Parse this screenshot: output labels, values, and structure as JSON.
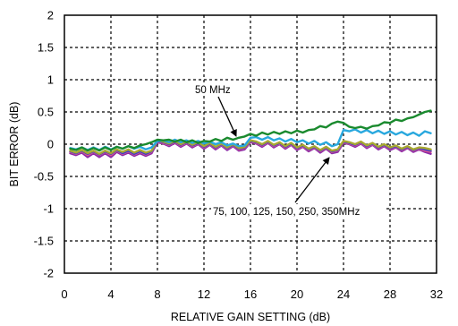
{
  "chart_data": {
    "type": "line",
    "title": "",
    "xlabel": "RELATIVE GAIN SETTING (dB)",
    "ylabel": "BIT ERROR (dB)",
    "xlim": [
      0,
      32
    ],
    "ylim": [
      -2,
      2
    ],
    "xticks": [
      0,
      4,
      8,
      12,
      16,
      20,
      24,
      28,
      32
    ],
    "yticks": [
      2,
      1.5,
      1,
      0.5,
      0,
      -0.5,
      -1,
      -1.5,
      -2
    ],
    "xtick_labels": [
      "0",
      "4",
      "8",
      "12",
      "16",
      "20",
      "24",
      "28",
      "32"
    ],
    "ytick_labels": [
      "2",
      "1.5",
      "1",
      "0.5",
      "0",
      "-0.5",
      "-1",
      "-1.5",
      "-2"
    ],
    "grid": true,
    "legend": "none",
    "annotations": [
      {
        "text": "50 MHz",
        "arrow_to": [
          14.8,
          0.1
        ]
      },
      {
        "text": "75, 100, 125, 150, 250, 350MHz",
        "arrow_to": [
          22.5,
          -0.18
        ]
      }
    ],
    "x": [
      0.5,
      1,
      1.5,
      2,
      2.5,
      3,
      3.5,
      4,
      4.5,
      5,
      5.5,
      6,
      6.5,
      7,
      7.5,
      8,
      8.5,
      9,
      9.5,
      10,
      10.5,
      11,
      11.5,
      12,
      12.5,
      13,
      13.5,
      14,
      14.5,
      15,
      15.5,
      16,
      16.5,
      17,
      17.5,
      18,
      18.5,
      19,
      19.5,
      20,
      20.5,
      21,
      21.5,
      22,
      22.5,
      23,
      23.5,
      24,
      24.5,
      25,
      25.5,
      26,
      26.5,
      27,
      27.5,
      28,
      28.5,
      29,
      29.5,
      30,
      30.5,
      31,
      31.5
    ],
    "series": [
      {
        "color": "#1a8a2e",
        "values": [
          -0.07,
          -0.09,
          -0.05,
          -0.1,
          -0.06,
          -0.1,
          -0.05,
          -0.09,
          -0.04,
          -0.07,
          -0.03,
          -0.06,
          -0.02,
          0.0,
          0.03,
          0.07,
          0.06,
          0.07,
          0.04,
          0.07,
          0.03,
          0.06,
          0.02,
          0.05,
          0.04,
          0.08,
          0.05,
          0.1,
          0.07,
          0.1,
          0.12,
          0.16,
          0.13,
          0.18,
          0.15,
          0.19,
          0.16,
          0.2,
          0.17,
          0.21,
          0.18,
          0.22,
          0.23,
          0.28,
          0.26,
          0.32,
          0.35,
          0.33,
          0.27,
          0.25,
          0.27,
          0.24,
          0.28,
          0.29,
          0.34,
          0.33,
          0.38,
          0.36,
          0.4,
          0.42,
          0.46,
          0.5,
          0.52
        ]
      },
      {
        "color": "#29a8de",
        "values": [
          -0.06,
          -0.08,
          -0.05,
          -0.09,
          -0.05,
          -0.09,
          -0.04,
          -0.08,
          -0.04,
          -0.07,
          -0.03,
          -0.07,
          -0.04,
          -0.08,
          -0.05,
          0.05,
          0.06,
          0.03,
          0.07,
          0.03,
          0.06,
          0.02,
          0.05,
          0.01,
          0.04,
          0.0,
          0.03,
          -0.02,
          0.01,
          -0.03,
          -0.02,
          0.1,
          0.11,
          0.07,
          0.11,
          0.06,
          0.09,
          0.04,
          0.08,
          0.03,
          0.06,
          0.01,
          0.05,
          -0.01,
          0.03,
          -0.03,
          0.0,
          0.22,
          0.2,
          0.23,
          0.18,
          0.22,
          0.17,
          0.21,
          0.16,
          0.2,
          0.15,
          0.19,
          0.14,
          0.18,
          0.13,
          0.2,
          0.17
        ]
      },
      {
        "color": "#a8a830",
        "values": [
          -0.1,
          -0.13,
          -0.09,
          -0.14,
          -0.1,
          -0.15,
          -0.1,
          -0.14,
          -0.08,
          -0.12,
          -0.08,
          -0.13,
          -0.09,
          -0.13,
          -0.1,
          0.06,
          0.04,
          0.01,
          0.05,
          0.0,
          0.04,
          -0.01,
          0.03,
          -0.03,
          0.02,
          -0.04,
          0.01,
          -0.05,
          0.0,
          -0.06,
          -0.04,
          0.06,
          0.04,
          0.0,
          0.05,
          -0.01,
          0.03,
          -0.03,
          0.02,
          -0.05,
          -0.01,
          -0.07,
          -0.03,
          -0.09,
          -0.04,
          -0.1,
          -0.08,
          0.05,
          0.03,
          0.0,
          0.04,
          -0.02,
          0.02,
          -0.04,
          0.0,
          -0.05,
          -0.02,
          -0.07,
          -0.03,
          -0.08,
          -0.05,
          -0.06,
          -0.08
        ]
      },
      {
        "color": "#3a3ad0",
        "values": [
          -0.11,
          -0.14,
          -0.1,
          -0.15,
          -0.11,
          -0.16,
          -0.11,
          -0.15,
          -0.09,
          -0.14,
          -0.1,
          -0.15,
          -0.11,
          -0.15,
          -0.11,
          0.05,
          0.03,
          0.0,
          0.04,
          -0.01,
          0.03,
          -0.02,
          0.02,
          -0.04,
          0.01,
          -0.05,
          0.0,
          -0.06,
          -0.01,
          -0.07,
          -0.05,
          0.05,
          0.03,
          -0.01,
          0.04,
          -0.02,
          0.02,
          -0.04,
          0.01,
          -0.06,
          -0.02,
          -0.08,
          -0.04,
          -0.1,
          -0.05,
          -0.11,
          -0.09,
          0.04,
          0.02,
          -0.01,
          0.03,
          -0.03,
          0.01,
          -0.05,
          -0.01,
          -0.06,
          -0.03,
          -0.08,
          -0.04,
          -0.09,
          -0.06,
          -0.08,
          -0.1
        ]
      },
      {
        "color": "#e05a8a",
        "values": [
          -0.12,
          -0.15,
          -0.11,
          -0.17,
          -0.12,
          -0.17,
          -0.12,
          -0.17,
          -0.1,
          -0.15,
          -0.11,
          -0.16,
          -0.12,
          -0.16,
          -0.12,
          0.04,
          0.02,
          -0.01,
          0.03,
          -0.02,
          0.02,
          -0.03,
          0.01,
          -0.05,
          0.0,
          -0.06,
          -0.01,
          -0.07,
          -0.02,
          -0.08,
          -0.06,
          0.04,
          0.02,
          -0.02,
          0.03,
          -0.03,
          0.01,
          -0.05,
          0.0,
          -0.07,
          -0.03,
          -0.09,
          -0.05,
          -0.11,
          -0.06,
          -0.12,
          -0.1,
          0.03,
          0.01,
          -0.02,
          0.02,
          -0.04,
          0.0,
          -0.06,
          -0.02,
          -0.07,
          -0.04,
          -0.09,
          -0.05,
          -0.1,
          -0.07,
          -0.1,
          -0.12
        ]
      },
      {
        "color": "#8a2aa8",
        "values": [
          -0.14,
          -0.17,
          -0.13,
          -0.2,
          -0.14,
          -0.2,
          -0.14,
          -0.2,
          -0.12,
          -0.17,
          -0.13,
          -0.18,
          -0.14,
          -0.18,
          -0.14,
          0.03,
          0.01,
          -0.03,
          0.02,
          -0.04,
          0.01,
          -0.05,
          0.0,
          -0.07,
          -0.01,
          -0.08,
          -0.02,
          -0.09,
          -0.03,
          -0.1,
          -0.08,
          0.03,
          0.01,
          -0.04,
          0.02,
          -0.05,
          0.0,
          -0.07,
          -0.01,
          -0.09,
          -0.04,
          -0.11,
          -0.06,
          -0.13,
          -0.07,
          -0.14,
          -0.12,
          0.02,
          0.0,
          -0.04,
          0.01,
          -0.06,
          -0.01,
          -0.08,
          -0.03,
          -0.09,
          -0.05,
          -0.11,
          -0.06,
          -0.12,
          -0.08,
          -0.12,
          -0.15
        ]
      }
    ]
  }
}
